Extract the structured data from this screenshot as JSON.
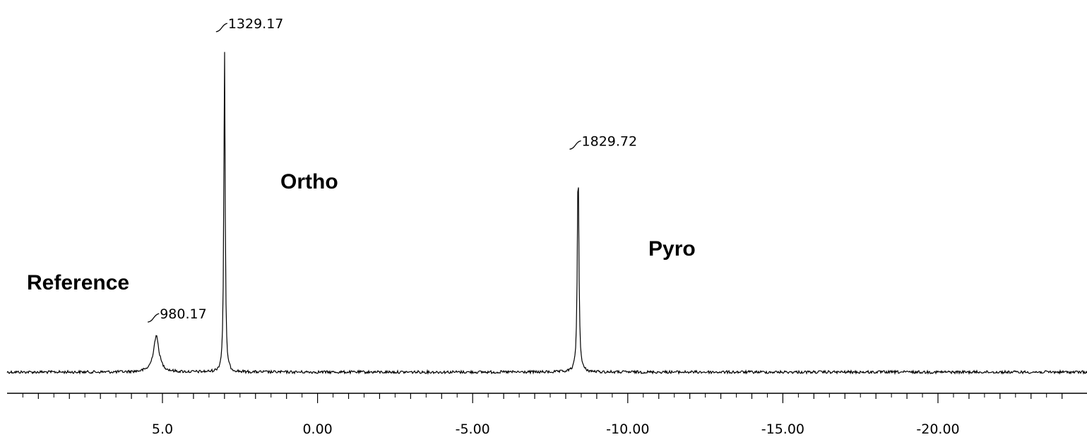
{
  "chart_data": {
    "type": "line",
    "title": "",
    "xlabel": "",
    "ylabel": "",
    "x_axis": {
      "reversed": true,
      "range": [
        9.7,
        -24.8
      ],
      "major_ticks": [
        5.0,
        0.0,
        -5.0,
        -10.0,
        -15.0,
        -20.0
      ],
      "tick_labels": [
        "5.0",
        "0.00",
        "-5.00",
        "-10.00",
        "-15.00",
        "-20.00"
      ],
      "minor_step": 1.0
    },
    "grid": false,
    "peaks": [
      {
        "ppm": 5.2,
        "height": 0.11,
        "width": 0.11,
        "integral": "980.17"
      },
      {
        "ppm": 3.0,
        "height": 1.0,
        "width": 0.025,
        "integral": "1329.17"
      },
      {
        "ppm": -8.4,
        "height": 0.64,
        "width": 0.03,
        "integral": "1829.72"
      }
    ],
    "annotations": [
      "Reference",
      "Ortho",
      "Pyro"
    ]
  }
}
